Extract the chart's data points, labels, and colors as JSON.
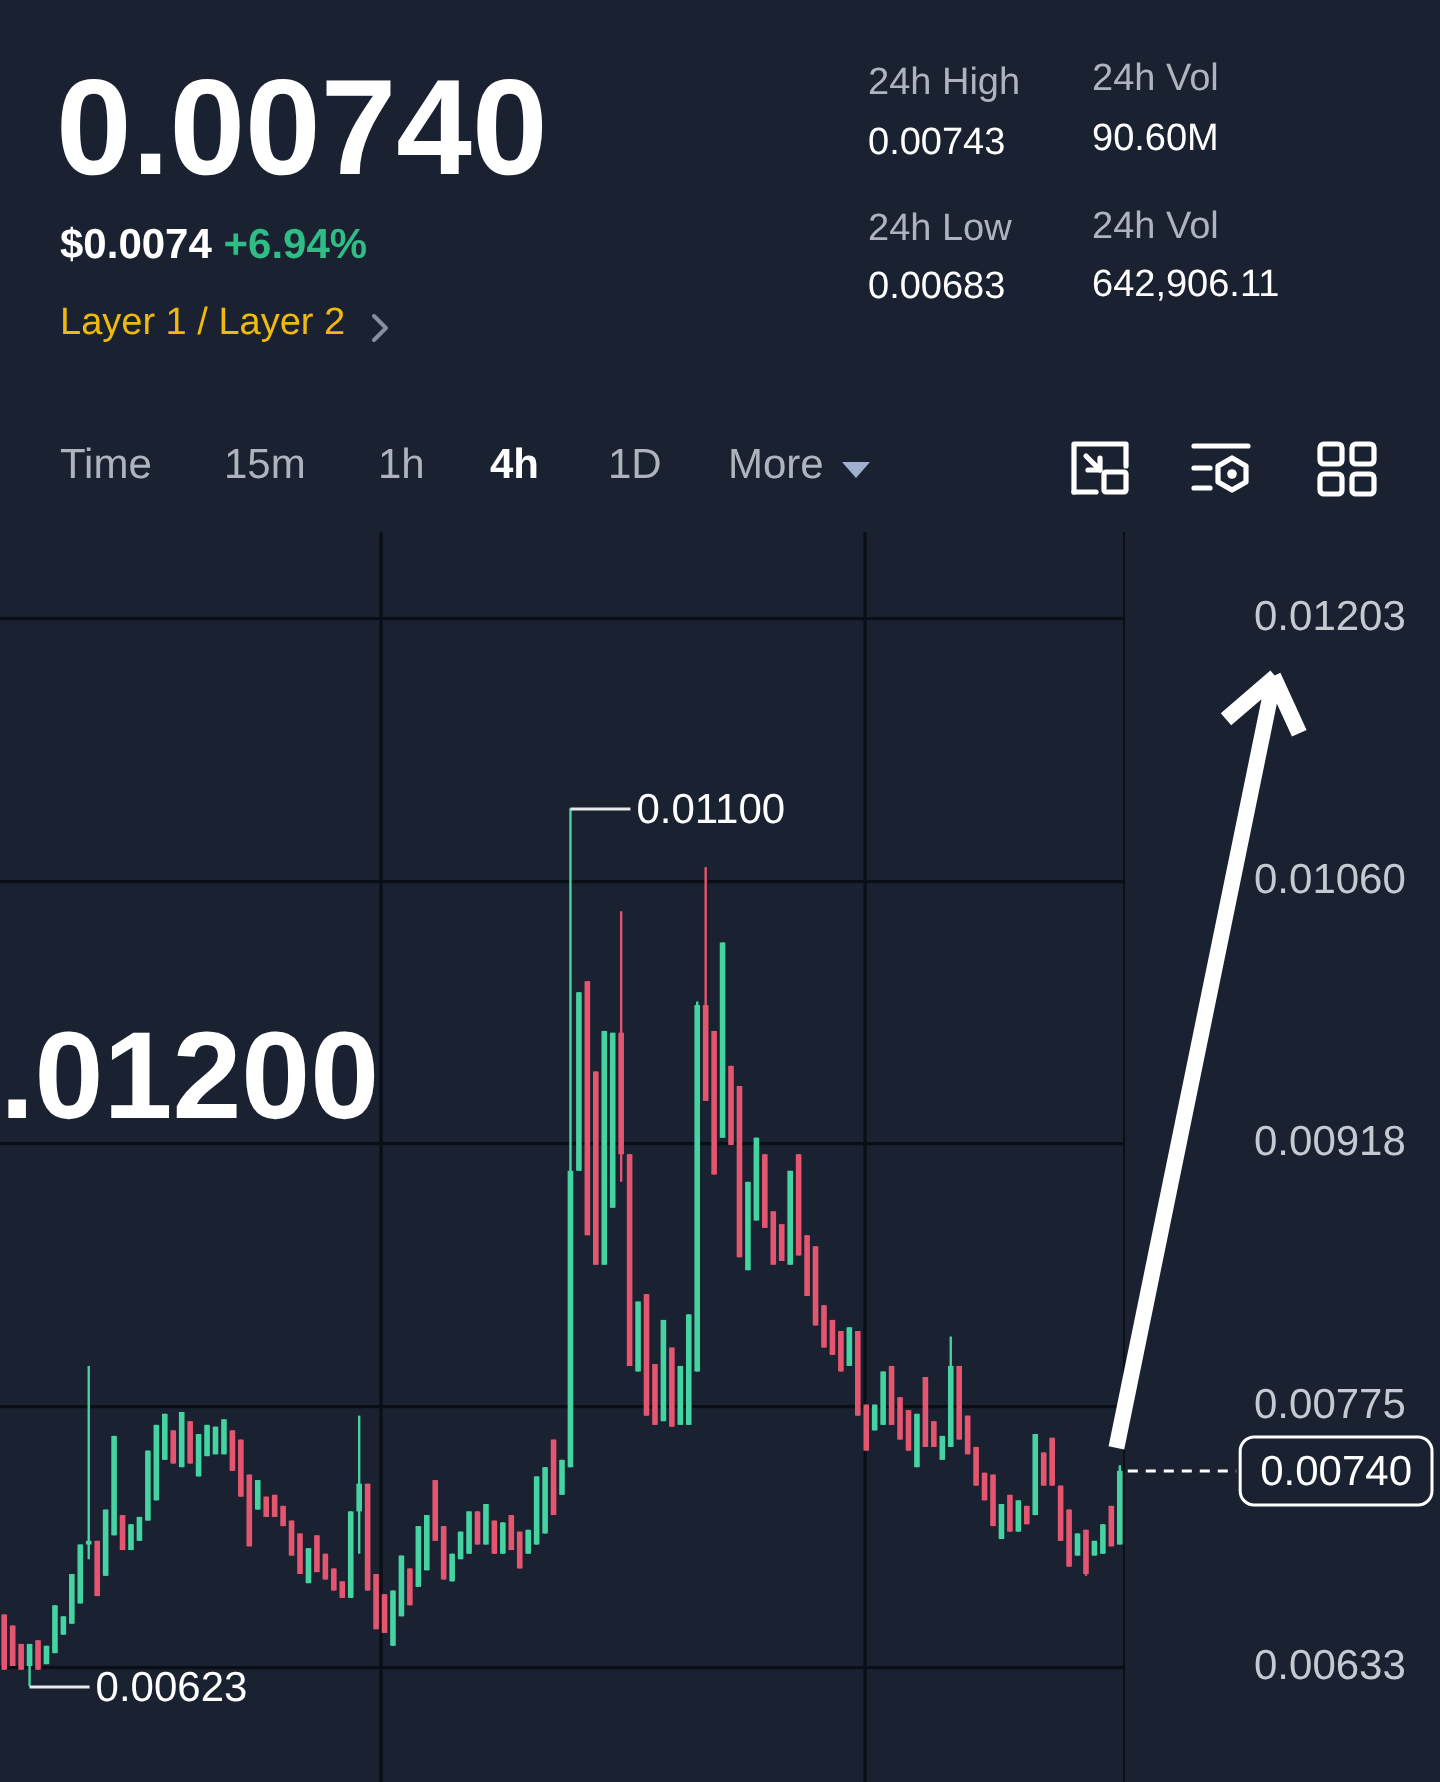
{
  "chart_data": {
    "type": "candlestick",
    "title": "0.00740",
    "subtitle": "$0.0074 +6.94%",
    "categories": [
      null,
      null,
      null,
      null,
      null,
      null,
      null,
      null,
      null,
      null,
      null,
      null,
      null,
      null,
      null,
      null,
      null,
      null,
      null,
      null,
      null,
      null,
      null,
      null,
      null,
      null,
      null,
      null,
      null,
      null,
      null,
      null,
      null,
      null,
      null,
      null,
      null,
      null,
      null,
      null,
      null,
      null,
      null,
      null,
      null,
      null,
      null,
      null,
      null,
      null,
      null,
      null,
      null,
      null,
      null,
      null,
      null,
      null,
      null,
      null,
      null,
      null,
      null,
      null,
      null,
      null,
      null,
      null,
      null,
      null,
      null,
      null,
      null,
      null,
      null,
      null,
      null,
      null,
      null,
      null,
      null,
      null,
      null,
      null,
      null,
      null,
      null,
      null,
      null,
      null,
      null,
      null,
      null,
      null,
      null,
      null,
      null,
      null,
      null,
      null,
      null,
      null,
      null,
      null,
      null,
      null,
      null,
      null,
      null,
      null,
      null,
      null,
      null,
      null,
      null,
      null,
      null,
      null,
      null,
      null,
      null,
      null,
      null,
      null,
      null,
      null,
      null,
      null,
      null,
      null,
      null,
      null,
      null
    ],
    "ohlc": [
      [
        0.00662,
        0.00662,
        0.00632,
        0.00632
      ],
      [
        0.00656,
        0.00656,
        0.00634,
        0.00634
      ],
      [
        0.00646,
        0.00646,
        0.00632,
        0.00632
      ],
      [
        0.00634,
        0.00646,
        0.00623,
        0.00646
      ],
      [
        0.00648,
        0.00648,
        0.00632,
        0.00632
      ],
      [
        0.00635,
        0.00645,
        0.00635,
        0.00645
      ],
      [
        0.00641,
        0.00667,
        0.00641,
        0.00667
      ],
      [
        0.00651,
        0.00661,
        0.00651,
        0.00661
      ],
      [
        0.00657,
        0.00684,
        0.00657,
        0.00684
      ],
      [
        0.00668,
        0.007,
        0.00668,
        0.007
      ],
      [
        0.007,
        0.00797,
        0.00692,
        0.00702
      ],
      [
        0.00702,
        0.00702,
        0.00672,
        0.00672
      ],
      [
        0.00683,
        0.00719,
        0.00683,
        0.00719
      ],
      [
        0.00705,
        0.00759,
        0.00705,
        0.00759
      ],
      [
        0.00716,
        0.00716,
        0.00697,
        0.00697
      ],
      [
        0.00697,
        0.00711,
        0.00697,
        0.00711
      ],
      [
        0.00702,
        0.00715,
        0.00702,
        0.00715
      ],
      [
        0.00713,
        0.00751,
        0.00713,
        0.00751
      ],
      [
        0.00724,
        0.00765,
        0.00724,
        0.00765
      ],
      [
        0.00746,
        0.00771,
        0.00746,
        0.00771
      ],
      [
        0.00762,
        0.00762,
        0.00744,
        0.00744
      ],
      [
        0.00742,
        0.00772,
        0.00742,
        0.00772
      ],
      [
        0.00767,
        0.00767,
        0.00744,
        0.00744
      ],
      [
        0.00737,
        0.0076,
        0.00737,
        0.0076
      ],
      [
        0.00748,
        0.00765,
        0.00748,
        0.00765
      ],
      [
        0.00749,
        0.00764,
        0.00749,
        0.00764
      ],
      [
        0.00749,
        0.00768,
        0.00749,
        0.00768
      ],
      [
        0.00762,
        0.00762,
        0.0074,
        0.0074
      ],
      [
        0.00757,
        0.00757,
        0.00726,
        0.00726
      ],
      [
        0.00738,
        0.00738,
        0.00699,
        0.00699
      ],
      [
        0.00719,
        0.00735,
        0.00719,
        0.00735
      ],
      [
        0.00726,
        0.00726,
        0.00715,
        0.00715
      ],
      [
        0.00727,
        0.00727,
        0.00715,
        0.00715
      ],
      [
        0.00721,
        0.00721,
        0.0071,
        0.0071
      ],
      [
        0.00713,
        0.00713,
        0.00694,
        0.00694
      ],
      [
        0.00706,
        0.00706,
        0.00684,
        0.00684
      ],
      [
        0.00679,
        0.00698,
        0.00679,
        0.00698
      ],
      [
        0.00705,
        0.00705,
        0.00685,
        0.00685
      ],
      [
        0.00695,
        0.00695,
        0.00681,
        0.00681
      ],
      [
        0.00687,
        0.00687,
        0.00675,
        0.00675
      ],
      [
        0.0068,
        0.0068,
        0.00671,
        0.00671
      ],
      [
        0.00671,
        0.00718,
        0.00671,
        0.00718
      ],
      [
        0.00718,
        0.0077,
        0.00695,
        0.00733
      ],
      [
        0.00733,
        0.00733,
        0.00675,
        0.00675
      ],
      [
        0.00684,
        0.00684,
        0.00654,
        0.00654
      ],
      [
        0.00673,
        0.00673,
        0.00652,
        0.00652
      ],
      [
        0.00645,
        0.00675,
        0.00645,
        0.00675
      ],
      [
        0.00661,
        0.00694,
        0.00661,
        0.00694
      ],
      [
        0.00687,
        0.00687,
        0.00667,
        0.00667
      ],
      [
        0.00677,
        0.0071,
        0.00677,
        0.0071
      ],
      [
        0.00686,
        0.00716,
        0.00686,
        0.00716
      ],
      [
        0.00735,
        0.00735,
        0.00702,
        0.00702
      ],
      [
        0.0071,
        0.0071,
        0.00681,
        0.00681
      ],
      [
        0.0068,
        0.00695,
        0.0068,
        0.00695
      ],
      [
        0.00692,
        0.00707,
        0.00692,
        0.00707
      ],
      [
        0.00695,
        0.00718,
        0.00695,
        0.00718
      ],
      [
        0.00718,
        0.00718,
        0.007,
        0.007
      ],
      [
        0.007,
        0.00722,
        0.007,
        0.00722
      ],
      [
        0.00713,
        0.00713,
        0.00695,
        0.00695
      ],
      [
        0.00695,
        0.00712,
        0.00695,
        0.00712
      ],
      [
        0.00716,
        0.00716,
        0.00697,
        0.00697
      ],
      [
        0.00707,
        0.00707,
        0.00687,
        0.00687
      ],
      [
        0.00695,
        0.00708,
        0.00695,
        0.00708
      ],
      [
        0.007,
        0.00737,
        0.007,
        0.00737
      ],
      [
        0.00706,
        0.00742,
        0.00706,
        0.00742
      ],
      [
        0.00757,
        0.00757,
        0.00716,
        0.00716
      ],
      [
        0.00727,
        0.00746,
        0.00727,
        0.00746
      ],
      [
        0.00742,
        0.011,
        0.00742,
        0.00903
      ],
      [
        0.00903,
        0.01,
        0.00903,
        0.01
      ],
      [
        0.01006,
        0.01006,
        0.00868,
        0.00868
      ],
      [
        0.00957,
        0.00957,
        0.00852,
        0.00852
      ],
      [
        0.00852,
        0.00979,
        0.00852,
        0.00979
      ],
      [
        0.00883,
        0.00978,
        0.00883,
        0.00978
      ],
      [
        0.00978,
        0.01044,
        0.00897,
        0.00912
      ],
      [
        0.00912,
        0.00912,
        0.00797,
        0.00797
      ],
      [
        0.00794,
        0.00832,
        0.00794,
        0.00832
      ],
      [
        0.00836,
        0.00836,
        0.0077,
        0.0077
      ],
      [
        0.00798,
        0.00798,
        0.00765,
        0.00765
      ],
      [
        0.00767,
        0.00822,
        0.00767,
        0.00822
      ],
      [
        0.00807,
        0.00807,
        0.00764,
        0.00764
      ],
      [
        0.00765,
        0.00797,
        0.00765,
        0.00797
      ],
      [
        0.00765,
        0.00825,
        0.00765,
        0.00825
      ],
      [
        0.00794,
        0.00995,
        0.00794,
        0.00993
      ],
      [
        0.00993,
        0.01068,
        0.00941,
        0.00941
      ],
      [
        0.00979,
        0.00979,
        0.00901,
        0.00901
      ],
      [
        0.00921,
        0.01027,
        0.00921,
        0.01027
      ],
      [
        0.0096,
        0.0096,
        0.00917,
        0.00917
      ],
      [
        0.00949,
        0.00949,
        0.00856,
        0.00856
      ],
      [
        0.00849,
        0.00897,
        0.00849,
        0.00897
      ],
      [
        0.00876,
        0.00921,
        0.00876,
        0.00921
      ],
      [
        0.00912,
        0.00912,
        0.00872,
        0.00872
      ],
      [
        0.00881,
        0.00881,
        0.00852,
        0.00852
      ],
      [
        0.00874,
        0.00874,
        0.00854,
        0.00854
      ],
      [
        0.00852,
        0.00903,
        0.00852,
        0.00903
      ],
      [
        0.00912,
        0.00912,
        0.00857,
        0.00857
      ],
      [
        0.00868,
        0.00868,
        0.00835,
        0.00835
      ],
      [
        0.00862,
        0.00862,
        0.00819,
        0.00819
      ],
      [
        0.0083,
        0.0083,
        0.00807,
        0.00807
      ],
      [
        0.00822,
        0.00822,
        0.00803,
        0.00803
      ],
      [
        0.00816,
        0.00816,
        0.00794,
        0.00794
      ],
      [
        0.00797,
        0.00818,
        0.00797,
        0.00818
      ],
      [
        0.00816,
        0.00816,
        0.0077,
        0.0077
      ],
      [
        0.00776,
        0.00776,
        0.00751,
        0.00751
      ],
      [
        0.00762,
        0.00776,
        0.00762,
        0.00776
      ],
      [
        0.00765,
        0.00794,
        0.00765,
        0.00794
      ],
      [
        0.00797,
        0.00797,
        0.00765,
        0.00765
      ],
      [
        0.0078,
        0.0078,
        0.00757,
        0.00757
      ],
      [
        0.00773,
        0.00773,
        0.00751,
        0.00751
      ],
      [
        0.00742,
        0.00771,
        0.00742,
        0.00771
      ],
      [
        0.00791,
        0.00791,
        0.00753,
        0.00753
      ],
      [
        0.00767,
        0.00767,
        0.00753,
        0.00753
      ],
      [
        0.00746,
        0.00759,
        0.00746,
        0.00759
      ],
      [
        0.00753,
        0.00813,
        0.00753,
        0.00797
      ],
      [
        0.00797,
        0.00797,
        0.00757,
        0.00757
      ],
      [
        0.0077,
        0.0077,
        0.00749,
        0.00749
      ],
      [
        0.00753,
        0.00753,
        0.00732,
        0.00732
      ],
      [
        0.00739,
        0.00739,
        0.00724,
        0.00724
      ],
      [
        0.00738,
        0.00738,
        0.0071,
        0.0071
      ],
      [
        0.00703,
        0.00722,
        0.00703,
        0.00722
      ],
      [
        0.00727,
        0.00727,
        0.00707,
        0.00707
      ],
      [
        0.00707,
        0.00724,
        0.00707,
        0.00724
      ],
      [
        0.00721,
        0.00721,
        0.00711,
        0.00711
      ],
      [
        0.00716,
        0.0076,
        0.00716,
        0.0076
      ],
      [
        0.0075,
        0.0075,
        0.00732,
        0.00732
      ],
      [
        0.00758,
        0.00758,
        0.00732,
        0.00732
      ],
      [
        0.00732,
        0.00732,
        0.00702,
        0.00702
      ],
      [
        0.00719,
        0.00719,
        0.00688,
        0.00688
      ],
      [
        0.00694,
        0.00706,
        0.00694,
        0.00706
      ],
      [
        0.00708,
        0.00708,
        0.00683,
        0.00684
      ],
      [
        0.00694,
        0.00702,
        0.00694,
        0.00702
      ],
      [
        0.00695,
        0.00711,
        0.00695,
        0.00711
      ],
      [
        0.00721,
        0.00721,
        0.00699,
        0.00699
      ],
      [
        0.007,
        0.00743,
        0.007,
        0.0074
      ]
    ],
    "ylim": [
      0.00571,
      0.0125
    ],
    "yticks": [
      0.00633,
      0.00775,
      0.00918,
      {
        "value": 0.0106,
        "label": "0.01060"
      },
      0.01203
    ],
    "grid": true,
    "tick_labels": "y",
    "ref_lines": [
      {
        "axis": "y",
        "value": 0.0074,
        "label": "0.00740",
        "line_style": "dashed",
        "color": "#ffffff"
      }
    ],
    "annotations": [
      "0.01100",
      "0.00623",
      "Layer 1 / Layer 2",
      "24h High",
      "0.00743",
      "24h Low",
      "0.00683",
      "24h Vol",
      "90.60M",
      "24h Vol",
      "642,906.11",
      "Time",
      "15m",
      "1h",
      "4h",
      "1D",
      "More",
      ".01200"
    ]
  }
}
